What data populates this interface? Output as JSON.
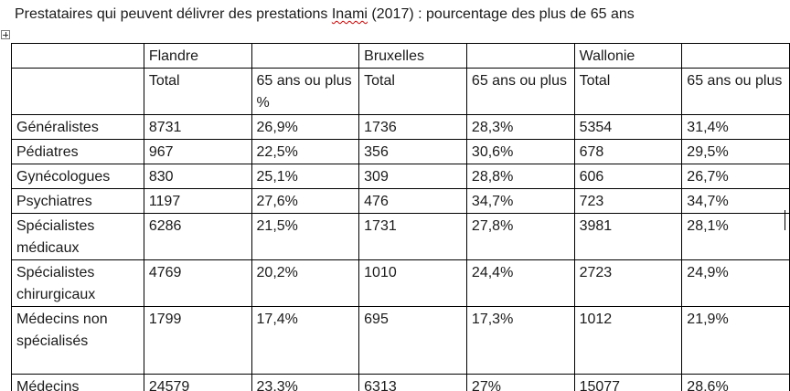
{
  "document": {
    "title_before": "Prestataires qui peuvent délivrer des prestations ",
    "title_flagged": "Inami",
    "title_after": " (2017) : pourcentage des plus de 65 ans"
  },
  "table": {
    "regions": [
      "",
      "Flandre",
      "",
      "Bruxelles",
      "",
      "Wallonie",
      ""
    ],
    "subheaders": [
      "",
      "Total",
      "65 ans ou plus %",
      "Total",
      "65 ans ou plus",
      "Total",
      "65 ans ou plus"
    ],
    "rows": [
      [
        "Généralistes",
        "8731",
        "26,9%",
        "1736",
        "28,3%",
        "5354",
        "31,4%"
      ],
      [
        "Pédiatres",
        "967",
        "22,5%",
        "356",
        "30,6%",
        "678",
        "29,5%"
      ],
      [
        "Gynécologues",
        "830",
        "25,1%",
        "309",
        "28,8%",
        "606",
        "26,7%"
      ],
      [
        "Psychiatres",
        "1197",
        "27,6%",
        "476",
        "34,7%",
        "723",
        "34,7%"
      ],
      [
        "Spécialistes médicaux",
        "6286",
        "21,5%",
        "1731",
        "27,8%",
        "3981",
        "28,1%"
      ],
      [
        "Spécialistes chirurgicaux",
        "4769",
        "20,2%",
        "1010",
        "24,4%",
        "2723",
        "24,9%"
      ],
      [
        "Médecins non spécialisés",
        "1799",
        "17,4%",
        "695",
        "17,3%",
        "1012",
        "21,9%"
      ],
      [
        "Médecins",
        "24579",
        "23,3%",
        "6313",
        "27%",
        "15077",
        "28,6%"
      ]
    ]
  },
  "icons": {
    "table_handle": "table-move-handle-icon"
  }
}
